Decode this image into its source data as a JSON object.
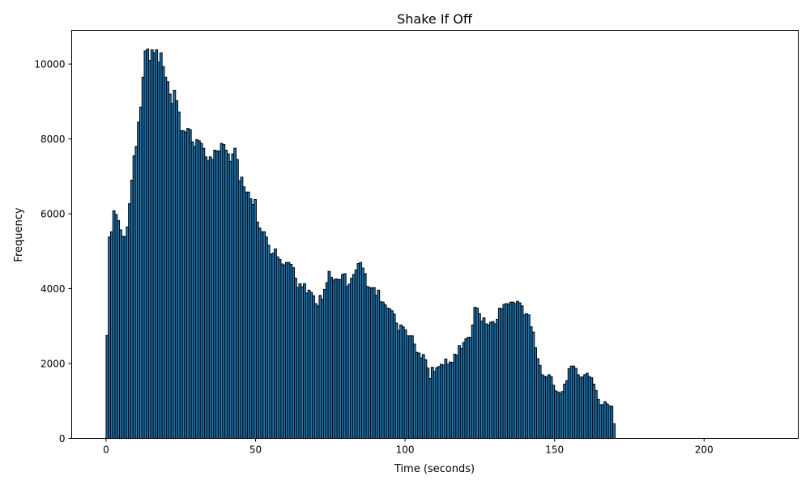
{
  "chart_data": {
    "type": "bar",
    "title": "Shake If Off",
    "xlabel": "Time (seconds)",
    "ylabel": "Frequency",
    "xlim": [
      -11.5,
      231.5
    ],
    "ylim": [
      0,
      10900
    ],
    "xticks": [
      0,
      50,
      100,
      150,
      200
    ],
    "yticks": [
      0,
      2000,
      4000,
      6000,
      8000,
      10000
    ],
    "bin_start": 0,
    "bin_width": 0.75,
    "grid": false,
    "bar_color": "#1f77b4",
    "edge_color": "#000000",
    "values": [
      2750,
      5380,
      5520,
      6080,
      5980,
      5820,
      5570,
      5400,
      5390,
      5650,
      6270,
      6900,
      7550,
      7800,
      8450,
      8850,
      9650,
      10350,
      10400,
      10100,
      10380,
      10300,
      10380,
      10050,
      10300,
      9930,
      9650,
      9530,
      9200,
      8950,
      9300,
      9020,
      8720,
      8220,
      8220,
      8180,
      8280,
      8250,
      7920,
      7800,
      7980,
      7950,
      7880,
      7750,
      7520,
      7420,
      7520,
      7450,
      7700,
      7680,
      7680,
      7880,
      7850,
      7700,
      7600,
      7400,
      7600,
      7750,
      7450,
      6880,
      6980,
      6720,
      6580,
      6580,
      6400,
      6250,
      6380,
      5780,
      5620,
      5520,
      5520,
      5380,
      5160,
      4920,
      4950,
      5060,
      4850,
      4780,
      4660,
      4630,
      4700,
      4700,
      4650,
      4560,
      4280,
      4030,
      4130,
      4050,
      4130,
      3880,
      3960,
      3900,
      3810,
      3600,
      3540,
      3820,
      3720,
      3980,
      4160,
      4460,
      4300,
      4230,
      4260,
      4250,
      4240,
      4380,
      4400,
      4060,
      4120,
      4280,
      4380,
      4500,
      4670,
      4700,
      4550,
      4400,
      4060,
      4030,
      4020,
      4030,
      3820,
      3960,
      3650,
      3640,
      3570,
      3480,
      3460,
      3410,
      3320,
      3080,
      2880,
      3030,
      2980,
      2900,
      2740,
      2740,
      2740,
      2520,
      2300,
      2280,
      2150,
      2240,
      2100,
      1880,
      1600,
      1900,
      1790,
      1890,
      1920,
      1980,
      1960,
      2120,
      1980,
      2040,
      2030,
      2250,
      2220,
      2480,
      2400,
      2560,
      2660,
      2700,
      2700,
      3030,
      3500,
      3480,
      3330,
      3130,
      3220,
      3060,
      3030,
      3100,
      3120,
      3060,
      3180,
      3480,
      3460,
      3580,
      3600,
      3590,
      3640,
      3640,
      3600,
      3660,
      3620,
      3540,
      3300,
      3330,
      3300,
      2980,
      2840,
      2420,
      2130,
      1950,
      1700,
      1660,
      1640,
      1700,
      1650,
      1420,
      1270,
      1240,
      1210,
      1250,
      1450,
      1540,
      1860,
      1930,
      1930,
      1870,
      1700,
      1640,
      1640,
      1700,
      1740,
      1650,
      1620,
      1450,
      1280,
      1040,
      900,
      900,
      980,
      920,
      870,
      860,
      390
    ]
  }
}
